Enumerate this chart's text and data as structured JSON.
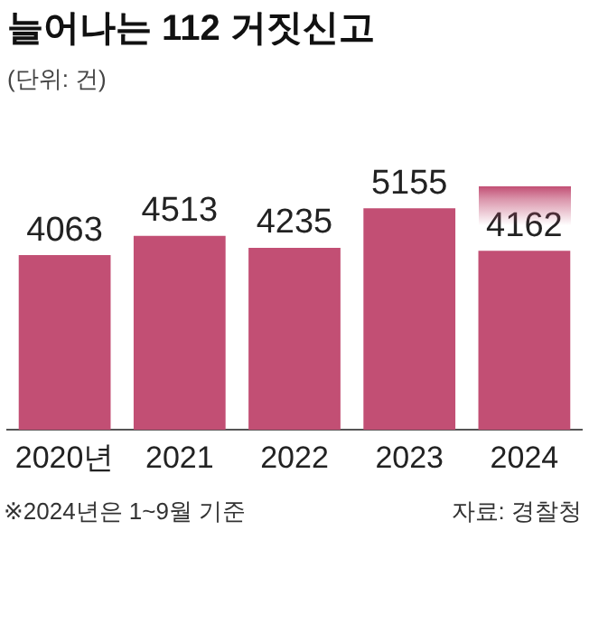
{
  "chart_data": {
    "type": "bar",
    "title": "늘어나는 112 거짓신고",
    "subtitle": "(단위: 건)",
    "categories": [
      "2020년",
      "2021",
      "2022",
      "2023",
      "2024"
    ],
    "values": [
      4063,
      4513,
      4235,
      5155,
      4162
    ],
    "color": "#c24f74",
    "data_labels": true,
    "grid": false,
    "legend": false,
    "annotations": [
      "※2024년은 1~9월 기준",
      "자료: 경찰청"
    ]
  }
}
